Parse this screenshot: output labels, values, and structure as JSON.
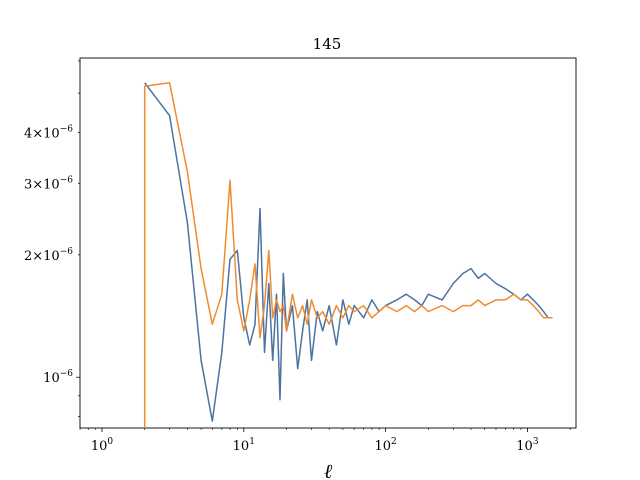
{
  "chart_data": {
    "type": "line",
    "title": "145",
    "xlabel": "ℓ",
    "ylabel": "",
    "xscale": "log",
    "yscale": "log",
    "xlim": [
      0.7,
      2200
    ],
    "ylim": [
      7.5e-07,
      6.1e-06
    ],
    "x_ticks": [
      {
        "value": 1,
        "base": "10",
        "exp": "0"
      },
      {
        "value": 10,
        "base": "10",
        "exp": "1"
      },
      {
        "value": 100,
        "base": "10",
        "exp": "2"
      },
      {
        "value": 1000,
        "base": "10",
        "exp": "3"
      }
    ],
    "y_ticks": [
      {
        "value": 1e-06,
        "coef": "",
        "base": "10",
        "exp": "−6"
      },
      {
        "value": 2e-06,
        "coef": "2×",
        "base": "10",
        "exp": "−6"
      },
      {
        "value": 3e-06,
        "coef": "3×",
        "base": "10",
        "exp": "−6"
      },
      {
        "value": 4e-06,
        "coef": "4×",
        "base": "10",
        "exp": "−6"
      }
    ],
    "grid": false,
    "legend": "none",
    "series": [
      {
        "color": "#4c72a0",
        "x": [
          2,
          3,
          4,
          5,
          6,
          7,
          8,
          9,
          10,
          11,
          12,
          13,
          14,
          15,
          16,
          17,
          18,
          19,
          20,
          22,
          24,
          26,
          28,
          30,
          33,
          36,
          40,
          45,
          50,
          55,
          60,
          70,
          80,
          90,
          100,
          120,
          140,
          160,
          180,
          200,
          250,
          300,
          350,
          400,
          450,
          500,
          600,
          700,
          800,
          900,
          1000,
          1100,
          1200,
          1300,
          1400,
          1500
        ],
        "y": [
          5.3e-06,
          4.4e-06,
          2.4e-06,
          1.1e-06,
          7.8e-07,
          1.15e-06,
          1.95e-06,
          2.05e-06,
          1.4e-06,
          1.2e-06,
          1.35e-06,
          2.6e-06,
          1.15e-06,
          1.7e-06,
          1.1e-06,
          1.6e-06,
          8.8e-07,
          1.8e-06,
          1.3e-06,
          1.5e-06,
          1.05e-06,
          1.3e-06,
          1.55e-06,
          1.1e-06,
          1.45e-06,
          1.3e-06,
          1.5e-06,
          1.2e-06,
          1.55e-06,
          1.35e-06,
          1.5e-06,
          1.4e-06,
          1.55e-06,
          1.45e-06,
          1.5e-06,
          1.55e-06,
          1.6e-06,
          1.55e-06,
          1.5e-06,
          1.6e-06,
          1.55e-06,
          1.7e-06,
          1.8e-06,
          1.85e-06,
          1.75e-06,
          1.8e-06,
          1.7e-06,
          1.65e-06,
          1.6e-06,
          1.55e-06,
          1.6e-06,
          1.55e-06,
          1.5e-06,
          1.45e-06,
          1.4e-06,
          1.4e-06
        ]
      },
      {
        "color": "#ef8c30",
        "x": [
          2,
          2,
          3,
          4,
          5,
          6,
          7,
          8,
          9,
          10,
          11,
          12,
          13,
          14,
          15,
          16,
          17,
          18,
          19,
          20,
          22,
          24,
          26,
          28,
          30,
          33,
          36,
          40,
          45,
          50,
          55,
          60,
          70,
          80,
          90,
          100,
          120,
          140,
          160,
          180,
          200,
          250,
          300,
          350,
          400,
          450,
          500,
          600,
          700,
          800,
          900,
          1000,
          1100,
          1200,
          1300,
          1400,
          1500
        ],
        "y": [
          7.5e-07,
          5.2e-06,
          5.3e-06,
          3.2e-06,
          1.85e-06,
          1.35e-06,
          1.6e-06,
          3.05e-06,
          1.55e-06,
          1.3e-06,
          1.55e-06,
          1.9e-06,
          1.25e-06,
          1.5e-06,
          2.05e-06,
          1.4e-06,
          1.55e-06,
          1.45e-06,
          1.5e-06,
          1.3e-06,
          1.6e-06,
          1.4e-06,
          1.5e-06,
          1.35e-06,
          1.55e-06,
          1.4e-06,
          1.45e-06,
          1.35e-06,
          1.5e-06,
          1.4e-06,
          1.5e-06,
          1.45e-06,
          1.5e-06,
          1.4e-06,
          1.45e-06,
          1.5e-06,
          1.45e-06,
          1.5e-06,
          1.45e-06,
          1.5e-06,
          1.45e-06,
          1.5e-06,
          1.45e-06,
          1.5e-06,
          1.5e-06,
          1.55e-06,
          1.5e-06,
          1.55e-06,
          1.55e-06,
          1.6e-06,
          1.55e-06,
          1.55e-06,
          1.5e-06,
          1.45e-06,
          1.4e-06,
          1.4e-06,
          1.4e-06
        ]
      }
    ]
  }
}
